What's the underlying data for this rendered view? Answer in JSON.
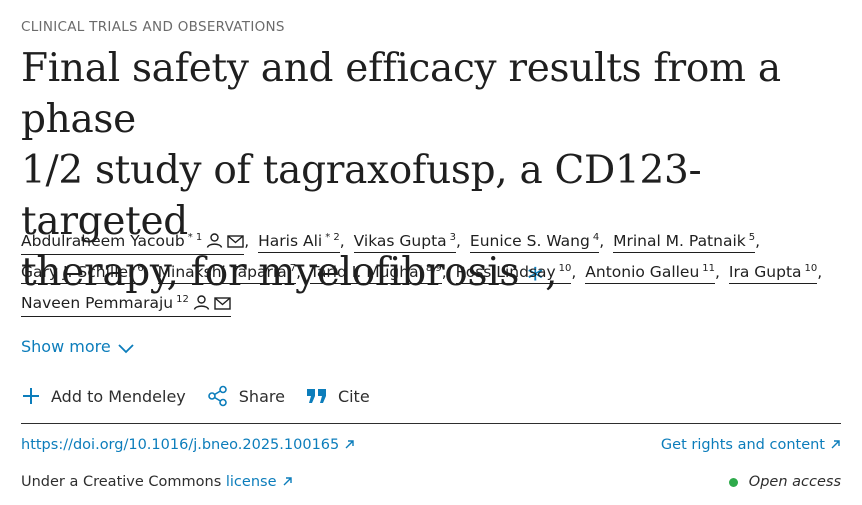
{
  "category": "CLINICAL TRIALS AND OBSERVATIONS",
  "title": {
    "line1": "Final safety and efficacy results from a phase",
    "line2": "1/2 study of tagraxofusp, a CD123-targeted",
    "line3": "therapy, for myelofibrosis",
    "star": "∗",
    "comma": ","
  },
  "authors": [
    {
      "name": "Abdulraheem Yacoub",
      "sup": "* 1"
    },
    {
      "name": "Haris Ali",
      "sup": "* 2"
    },
    {
      "name": "Vikas Gupta",
      "sup": "3"
    },
    {
      "name": "Eunice S. Wang",
      "sup": "4"
    },
    {
      "name": "Mrinal M. Patnaik",
      "sup": "5"
    },
    {
      "name": "Gary J. Schiller",
      "sup": "6"
    },
    {
      "name": "Minakshi Taparia",
      "sup": "7"
    },
    {
      "name": "Tariq I. Mughal",
      "sup": "8 9"
    },
    {
      "name": "Ross Lindsay",
      "sup": "10"
    },
    {
      "name": "Antonio Galleu",
      "sup": "11"
    },
    {
      "name": "Ira Gupta",
      "sup": "10"
    },
    {
      "name": "Naveen Pemmaraju",
      "sup": "12"
    }
  ],
  "separator": ",",
  "show_more": "Show more",
  "actions": {
    "mendeley": "Add to Mendeley",
    "share": "Share",
    "cite": "Cite"
  },
  "doi": "https://doi.org/10.1016/j.bneo.2025.100165",
  "rights": "Get rights and content",
  "license_prefix": "Under a Creative Commons",
  "license_link": "license",
  "open_access": "Open access",
  "colors": {
    "accent": "#0c7dbb",
    "open_access_dot": "#2eaa4b"
  }
}
